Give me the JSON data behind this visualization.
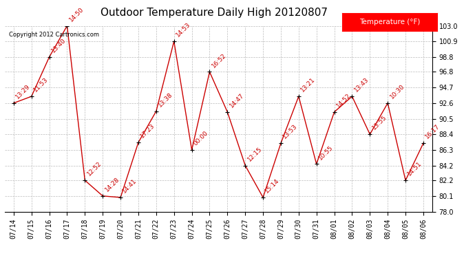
{
  "title": "Outdoor Temperature Daily High 20120807",
  "copyright_text": "Copyright 2012 Cartronics.com",
  "legend_label": "Temperature (°F)",
  "dates": [
    "07/14",
    "07/15",
    "07/16",
    "07/17",
    "07/18",
    "07/19",
    "07/20",
    "07/21",
    "07/22",
    "07/23",
    "07/24",
    "07/25",
    "07/26",
    "07/27",
    "07/28",
    "07/29",
    "07/30",
    "07/31",
    "08/01",
    "08/02",
    "08/03",
    "08/04",
    "08/05",
    "08/06"
  ],
  "values": [
    92.6,
    93.5,
    98.8,
    103.0,
    82.2,
    80.1,
    79.9,
    87.3,
    91.5,
    100.9,
    86.3,
    96.8,
    91.4,
    84.2,
    79.9,
    87.2,
    93.5,
    84.4,
    91.4,
    93.5,
    88.4,
    92.6,
    82.2,
    87.2
  ],
  "time_labels": [
    "13:29",
    "11:53",
    "13:40",
    "14:50",
    "12:52",
    "14:28",
    "14:41",
    "17:23",
    "13:38",
    "14:53",
    "00:00",
    "16:52",
    "14:47",
    "12:15",
    "15:14",
    "13:53",
    "13:21",
    "10:55",
    "14:52",
    "13:43",
    "13:55",
    "10:30",
    "14:51",
    "16:17"
  ],
  "ylim": [
    78.0,
    103.0
  ],
  "yticks": [
    78.0,
    80.1,
    82.2,
    84.2,
    86.3,
    88.4,
    90.5,
    92.6,
    94.7,
    96.8,
    98.8,
    100.9,
    103.0
  ],
  "line_color": "#cc0000",
  "marker_color": "#000000",
  "bg_color": "#ffffff",
  "grid_color": "#bbbbbb",
  "title_fontsize": 11,
  "tick_fontsize": 7,
  "time_label_fontsize": 6.5,
  "time_label_rotation": 45
}
